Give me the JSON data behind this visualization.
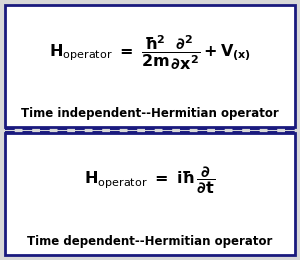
{
  "bg_color": "#e8e8e8",
  "border_color": "#1a1a7e",
  "dashed_color": "#1a1a7e",
  "top_label": "Time independent--Hermitian operator",
  "bot_label": "Time dependent--Hermitian operator",
  "fig_bg": "#d8d8d8",
  "label_fontsize": 8.5,
  "formula_fontsize": 11.5
}
